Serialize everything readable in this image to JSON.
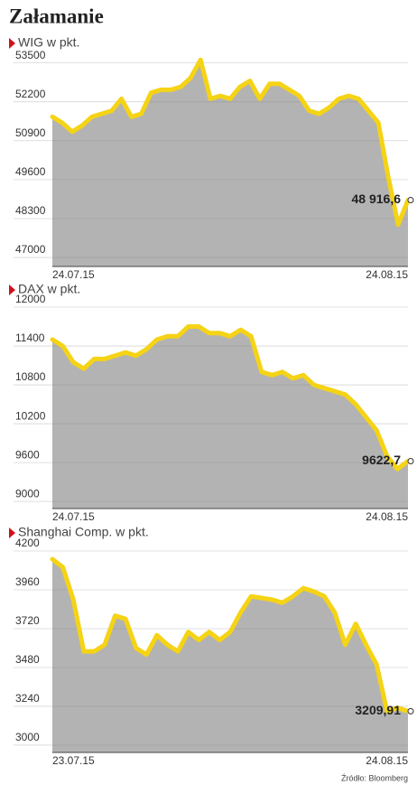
{
  "title": "Załamanie",
  "source": "Źródło: Bloomberg",
  "chart_data": [
    {
      "type": "area",
      "title": "WIG w pkt.",
      "categories": [
        "24.07.15",
        null,
        null,
        null,
        null,
        null,
        null,
        null,
        null,
        null,
        null,
        null,
        null,
        null,
        null,
        null,
        null,
        null,
        null,
        null,
        null,
        null,
        null,
        null,
        null,
        null,
        null,
        null,
        null,
        null,
        null,
        null,
        null,
        null,
        null,
        null,
        "24.08.15"
      ],
      "values": [
        51700,
        51500,
        51200,
        51400,
        51700,
        51800,
        51900,
        52300,
        51700,
        51800,
        52500,
        52600,
        52600,
        52700,
        53000,
        53600,
        52300,
        52400,
        52300,
        52700,
        52900,
        52300,
        52800,
        52800,
        52600,
        52400,
        51900,
        51800,
        52000,
        52300,
        52400,
        52300,
        51900,
        51500,
        49700,
        48100,
        48916.6
      ],
      "value_labels": [
        null,
        null,
        null,
        null,
        null,
        null,
        null,
        null,
        null,
        null,
        null,
        null,
        null,
        null,
        null,
        null,
        null,
        null,
        null,
        null,
        null,
        null,
        null,
        null,
        null,
        null,
        null,
        null,
        null,
        null,
        null,
        null,
        null,
        null,
        null,
        null,
        "48 916,6"
      ],
      "ylim": [
        46700,
        53850
      ],
      "yticks": [
        47000,
        48300,
        49600,
        50900,
        52200,
        53500
      ],
      "color": "#f5d315",
      "area_color": "#b3b3b3",
      "grid": true
    },
    {
      "type": "area",
      "title": "DAX w pkt.",
      "categories": [
        "24.07.15",
        null,
        null,
        null,
        null,
        null,
        null,
        null,
        null,
        null,
        null,
        null,
        null,
        null,
        null,
        null,
        null,
        null,
        null,
        null,
        null,
        null,
        null,
        null,
        null,
        null,
        null,
        null,
        null,
        null,
        null,
        null,
        null,
        null,
        "24.08.15"
      ],
      "values": [
        11500,
        11400,
        11150,
        11050,
        11200,
        11200,
        11250,
        11300,
        11250,
        11350,
        11500,
        11550,
        11550,
        11700,
        11700,
        11600,
        11600,
        11550,
        11650,
        11550,
        11000,
        10950,
        11000,
        10900,
        10950,
        10800,
        10750,
        10700,
        10650,
        10500,
        10300,
        10100,
        9700,
        9500,
        9622.7
      ],
      "value_labels": [
        null,
        null,
        null,
        null,
        null,
        null,
        null,
        null,
        null,
        null,
        null,
        null,
        null,
        null,
        null,
        null,
        null,
        null,
        null,
        null,
        null,
        null,
        null,
        null,
        null,
        null,
        null,
        null,
        null,
        null,
        null,
        null,
        null,
        null,
        "9622,7"
      ],
      "ylim": [
        8890,
        12140
      ],
      "yticks": [
        9000,
        9600,
        10200,
        10800,
        11400,
        12000
      ],
      "color": "#f5d315",
      "area_color": "#b3b3b3",
      "grid": true
    },
    {
      "type": "area",
      "title": "Shanghai Comp. w pkt.",
      "categories": [
        "23.07.15",
        null,
        null,
        null,
        null,
        null,
        null,
        null,
        null,
        null,
        null,
        null,
        null,
        null,
        null,
        null,
        null,
        null,
        null,
        null,
        null,
        null,
        null,
        null,
        null,
        null,
        null,
        null,
        null,
        null,
        null,
        null,
        null,
        null,
        "24.08.15"
      ],
      "values": [
        4150,
        4100,
        3900,
        3580,
        3580,
        3620,
        3800,
        3780,
        3600,
        3560,
        3680,
        3620,
        3580,
        3700,
        3650,
        3700,
        3650,
        3700,
        3820,
        3920,
        3910,
        3900,
        3880,
        3920,
        3970,
        3950,
        3920,
        3820,
        3620,
        3750,
        3620,
        3500,
        3210,
        3230,
        3209.91
      ],
      "value_labels": [
        null,
        null,
        null,
        null,
        null,
        null,
        null,
        null,
        null,
        null,
        null,
        null,
        null,
        null,
        null,
        null,
        null,
        null,
        null,
        null,
        null,
        null,
        null,
        null,
        null,
        null,
        null,
        null,
        null,
        null,
        null,
        null,
        null,
        null,
        "3209,91"
      ],
      "ylim": [
        2955,
        4256
      ],
      "yticks": [
        3000,
        3240,
        3480,
        3720,
        3960,
        4200
      ],
      "color": "#f5d315",
      "area_color": "#b3b3b3",
      "grid": true
    }
  ]
}
